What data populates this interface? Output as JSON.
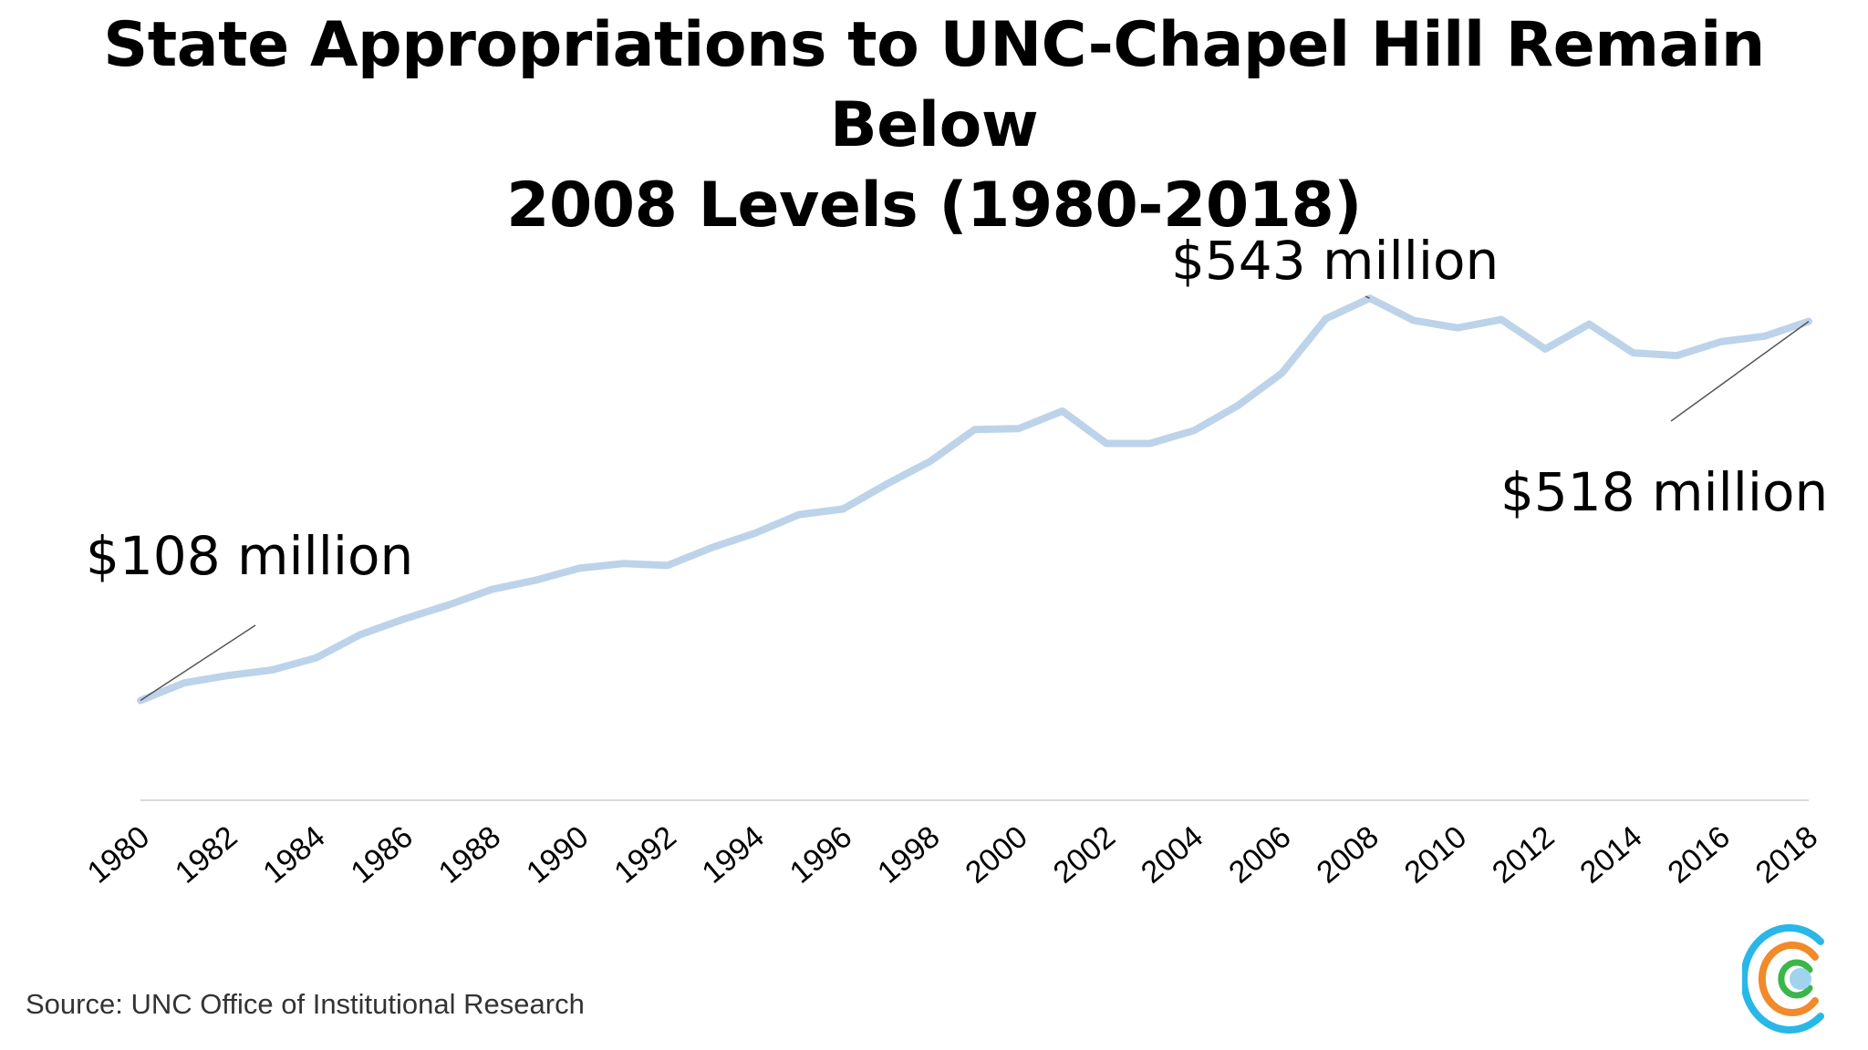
{
  "title_line1": "State Appropriations to UNC-Chapel Hill Remain Below",
  "title_line2": "2008 Levels (1980-2018)",
  "source": "Source: UNC Office of Institutional Research",
  "colors": {
    "line": "#bcd3ea",
    "axis": "#d9d9d9",
    "callout": "#555555",
    "text": "#000000"
  },
  "chart_data": {
    "type": "line",
    "title": "State Appropriations to UNC-Chapel Hill Remain Below 2008 Levels (1980-2018)",
    "xlabel": "",
    "ylabel": "",
    "unit": "million USD",
    "ylim": [
      0,
      700
    ],
    "grid": false,
    "x": [
      1980,
      1981,
      1982,
      1983,
      1984,
      1985,
      1986,
      1987,
      1988,
      1989,
      1990,
      1991,
      1992,
      1993,
      1994,
      1995,
      1996,
      1997,
      1998,
      1999,
      2000,
      2001,
      2002,
      2003,
      2004,
      2005,
      2006,
      2007,
      2008,
      2009,
      2010,
      2011,
      2012,
      2013,
      2014,
      2015,
      2016,
      2017,
      2018
    ],
    "x_tick_labels": [
      "1980",
      "1982",
      "1984",
      "1986",
      "1988",
      "1990",
      "1992",
      "1994",
      "1996",
      "1998",
      "2000",
      "2002",
      "2004",
      "2006",
      "2008",
      "2010",
      "2012",
      "2014",
      "2016",
      "2018"
    ],
    "series": [
      {
        "values": [
          108,
          127,
          135,
          141,
          154,
          179,
          196,
          211,
          228,
          238,
          251,
          256,
          254,
          273,
          289,
          309,
          315,
          342,
          367,
          401,
          402,
          421,
          386,
          386,
          400,
          427,
          462,
          521,
          543,
          519,
          511,
          520,
          488,
          515,
          484,
          481,
          496,
          502,
          518
        ]
      }
    ],
    "annotations": [
      {
        "text": "$108 million",
        "x": 1980,
        "y": 108
      },
      {
        "text": "$543 million",
        "x": 2008,
        "y": 543
      },
      {
        "text": "$518 million",
        "x": 2018,
        "y": 518
      }
    ]
  }
}
